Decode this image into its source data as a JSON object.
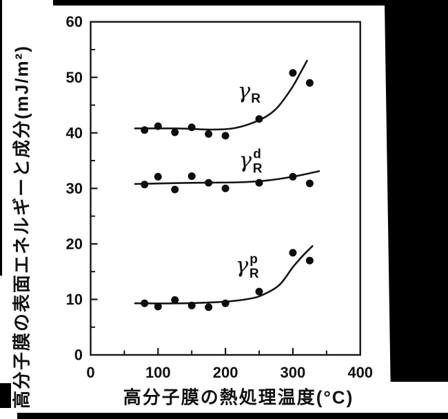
{
  "chart_data": {
    "type": "scatter",
    "title": "",
    "xlabel": "高分子膜の熱処理温度(°C)",
    "ylabel": "高分子膜の表面エネルギーと成分(mJ/m²)",
    "grid": false,
    "legend": "none (curve labels annotated on plot)",
    "ink_color": "#151515",
    "marker": {
      "shape": "circle",
      "color": "#0d0d0d",
      "radius": 5.5
    },
    "x_axis": {
      "range": [
        0,
        400
      ],
      "ticks": [
        0,
        100,
        200,
        300,
        400
      ],
      "minor": [
        50,
        150,
        250,
        350
      ]
    },
    "y_axis": {
      "range": [
        0,
        60
      ],
      "ticks": [
        0,
        10,
        20,
        30,
        40,
        50,
        60
      ],
      "minor": [
        5,
        15,
        25,
        35,
        45,
        55
      ]
    },
    "x": [
      80,
      100,
      125,
      150,
      175,
      200,
      250,
      300,
      325
    ],
    "series": [
      {
        "name": "gamma_R (total surface energy)",
        "label": {
          "base": "γ",
          "sub": "R",
          "sup": ""
        },
        "label_pos": [
          218,
          46.3
        ],
        "values": [
          40.5,
          41.2,
          40.1,
          41.0,
          39.8,
          39.5,
          42.5,
          50.8,
          49.0
        ],
        "curve": [
          [
            66,
            40.8
          ],
          [
            130,
            40.8
          ],
          [
            180,
            40.6
          ],
          [
            215,
            40.9
          ],
          [
            250,
            42.3
          ],
          [
            275,
            44.3
          ],
          [
            298,
            48.0
          ],
          [
            312,
            51.0
          ],
          [
            321,
            53.0
          ]
        ]
      },
      {
        "name": "gamma_R_d (dispersion component)",
        "label": {
          "base": "γ",
          "sub": "R",
          "sup": "d"
        },
        "label_pos": [
          220,
          33.8
        ],
        "values": [
          30.7,
          32.1,
          29.8,
          32.2,
          31.0,
          30.0,
          31.0,
          32.1,
          30.9
        ],
        "curve": [
          [
            66,
            30.8
          ],
          [
            150,
            31.0
          ],
          [
            220,
            31.1
          ],
          [
            260,
            31.4
          ],
          [
            300,
            32.1
          ],
          [
            339,
            33.1
          ]
        ]
      },
      {
        "name": "gamma_R_p (polar component)",
        "label": {
          "base": "γ",
          "sub": "R",
          "sup": "p"
        },
        "label_pos": [
          215,
          14.9
        ],
        "values": [
          9.3,
          8.7,
          9.9,
          8.9,
          8.6,
          9.3,
          11.4,
          18.4,
          17.0
        ],
        "curve": [
          [
            66,
            9.3
          ],
          [
            140,
            9.3
          ],
          [
            200,
            9.6
          ],
          [
            235,
            10.1
          ],
          [
            255,
            10.8
          ],
          [
            280,
            12.6
          ],
          [
            300,
            15.8
          ],
          [
            315,
            17.9
          ],
          [
            329,
            19.6
          ]
        ]
      }
    ]
  }
}
